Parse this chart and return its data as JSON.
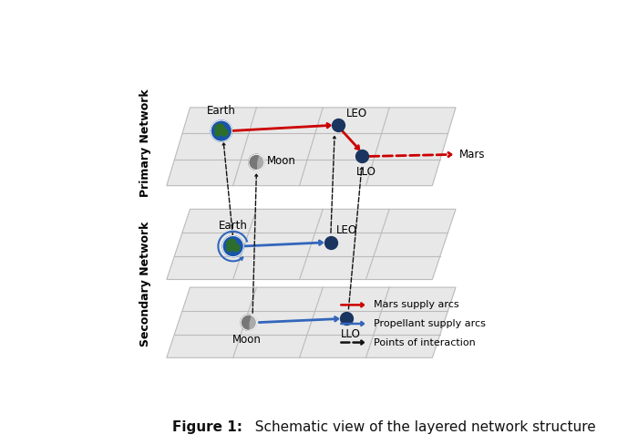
{
  "bg": "#ffffff",
  "grid_face": "#e8e8e8",
  "grid_line": "#bbbbbb",
  "grid_lw": 0.8,
  "red": "#cc0000",
  "blue": "#3366bb",
  "dark": "#111111",
  "node": "#1a3560",
  "earth_blue": "#1a55aa",
  "earth_green": "#2d6e2d",
  "moon_light": "#aaaaaa",
  "moon_dark": "#777777",
  "primary_label": "Primary Network",
  "secondary_label": "Secondary Network",
  "legend": [
    {
      "label": "Mars supply arcs",
      "color": "#cc0000",
      "style": "solid"
    },
    {
      "label": "Propellant supply arcs",
      "color": "#3366bb",
      "style": "solid"
    },
    {
      "label": "Points of interaction",
      "color": "#111111",
      "style": "dashed"
    }
  ],
  "caption_bold": "Figure 1:",
  "caption_rest": "  Schematic view of the layered network structure"
}
